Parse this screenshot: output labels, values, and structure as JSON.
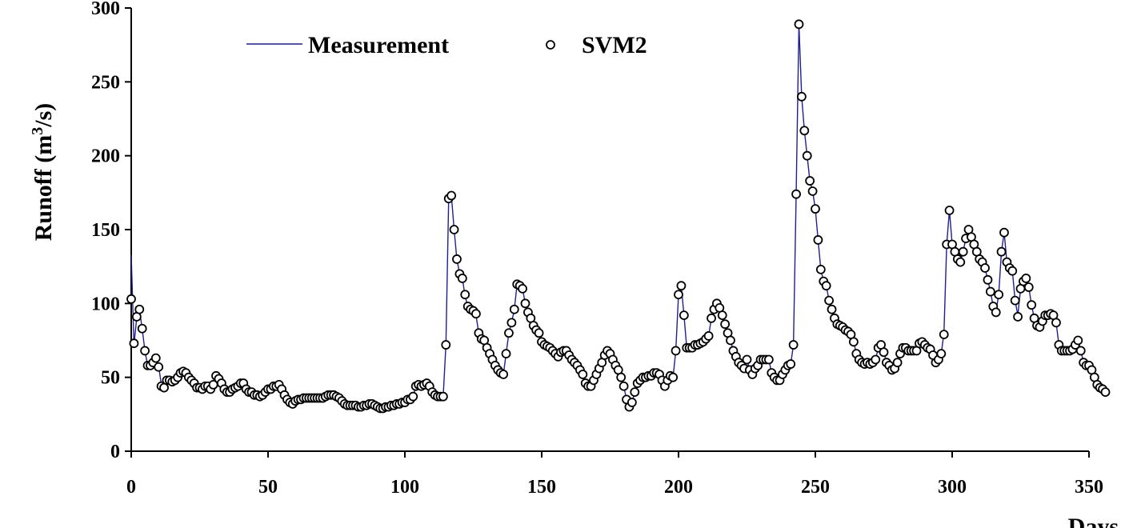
{
  "chart_data": {
    "type": "line",
    "xlabel": "Days",
    "ylabel_main": "Runoff (m",
    "ylabel_sup": "3",
    "ylabel_tail": "/s)",
    "xlim": [
      0,
      350
    ],
    "ylim": [
      0,
      300
    ],
    "xticks": [
      0,
      50,
      100,
      150,
      200,
      250,
      300,
      350
    ],
    "yticks": [
      0,
      50,
      100,
      150,
      200,
      250,
      300
    ],
    "legend": {
      "position": "top-left",
      "entries": [
        "Measurement",
        "SVM2"
      ]
    },
    "colors": {
      "measurement": "#1f1f8f",
      "svm2_edge": "#000000"
    },
    "series": [
      {
        "name": "Measurement",
        "style": "line",
        "values": [
          133,
          72,
          90,
          96,
          83,
          68,
          58,
          58,
          60,
          62,
          58,
          45,
          44,
          48,
          48,
          47,
          48,
          50,
          52,
          53,
          52,
          50,
          48,
          46,
          43,
          43,
          42,
          44,
          44,
          42,
          45,
          50,
          48,
          46,
          42,
          40,
          40,
          42,
          43,
          44,
          45,
          45,
          42,
          40,
          40,
          38,
          38,
          37,
          38,
          40,
          42,
          42,
          44,
          44,
          45,
          42,
          38,
          35,
          33,
          32,
          34,
          35,
          35,
          36,
          36,
          36,
          36,
          36,
          36,
          36,
          36,
          37,
          38,
          38,
          38,
          37,
          36,
          34,
          32,
          31,
          31,
          31,
          31,
          30,
          30,
          31,
          31,
          32,
          32,
          31,
          30,
          29,
          29,
          30,
          30,
          31,
          31,
          32,
          32,
          33,
          33,
          35,
          35,
          37,
          44,
          45,
          44,
          45,
          46,
          44,
          40,
          38,
          37,
          37,
          37,
          72,
          170,
          173,
          150,
          130,
          120,
          117,
          105,
          98,
          96,
          95,
          92,
          80,
          76,
          75,
          70,
          66,
          62,
          58,
          55,
          53,
          52,
          66,
          80,
          87,
          96,
          113,
          112,
          110,
          100,
          94,
          90,
          85,
          82,
          80,
          74,
          72,
          71,
          70,
          68,
          66,
          64,
          67,
          68,
          68,
          65,
          62,
          60,
          58,
          55,
          52,
          46,
          44,
          44,
          48,
          52,
          56,
          60,
          65,
          68,
          66,
          62,
          58,
          55,
          50,
          44,
          35,
          30,
          33,
          40,
          46,
          48,
          50,
          50,
          51,
          51,
          53,
          53,
          52,
          48,
          44,
          48,
          51,
          50,
          68,
          106,
          112,
          92,
          70,
          70,
          70,
          72,
          72,
          73,
          74,
          76,
          78,
          90,
          96,
          100,
          97,
          92,
          86,
          80,
          75,
          68,
          64,
          60,
          58,
          56,
          62,
          55,
          52,
          56,
          58,
          62,
          62,
          62,
          62,
          53,
          50,
          48,
          48,
          52,
          55,
          58,
          59,
          72,
          175,
          289,
          240,
          217,
          200,
          183,
          176,
          164,
          143,
          123,
          115,
          112,
          102,
          96,
          90,
          86,
          85,
          84,
          82,
          81,
          79,
          74,
          66,
          62,
          60,
          59,
          60,
          59,
          60,
          62,
          70,
          72,
          67,
          60,
          58,
          55,
          56,
          60,
          66,
          70,
          70,
          68,
          68,
          68,
          68,
          73,
          74,
          72,
          70,
          69,
          65,
          60,
          62,
          66,
          80,
          140,
          163,
          140,
          135,
          130,
          128,
          135,
          144,
          150,
          145,
          140,
          135,
          130,
          128,
          124,
          116,
          108,
          98,
          94,
          106,
          135,
          148,
          128,
          124,
          122,
          102,
          92,
          110,
          115,
          117,
          111,
          99,
          90,
          85,
          84,
          88,
          92,
          92,
          93,
          92,
          87,
          72,
          68,
          68,
          68,
          68,
          69,
          72,
          75,
          68,
          60,
          58,
          58,
          55,
          50,
          45,
          43,
          42,
          40
        ]
      },
      {
        "name": "SVM2",
        "style": "markers",
        "values": [
          103,
          73,
          91,
          96,
          83,
          68,
          58,
          58,
          60,
          63,
          57,
          44,
          43,
          48,
          48,
          47,
          48,
          50,
          53,
          54,
          53,
          50,
          48,
          46,
          43,
          43,
          42,
          44,
          44,
          42,
          45,
          51,
          49,
          46,
          42,
          40,
          40,
          42,
          43,
          44,
          46,
          46,
          42,
          40,
          40,
          38,
          38,
          37,
          38,
          40,
          42,
          42,
          44,
          44,
          45,
          42,
          38,
          35,
          33,
          32,
          34,
          35,
          35,
          36,
          36,
          36,
          36,
          36,
          36,
          36,
          36,
          37,
          38,
          38,
          38,
          37,
          36,
          34,
          32,
          31,
          31,
          31,
          31,
          30,
          30,
          31,
          31,
          32,
          32,
          31,
          30,
          29,
          29,
          30,
          30,
          31,
          31,
          32,
          32,
          33,
          33,
          35,
          35,
          37,
          44,
          45,
          44,
          45,
          46,
          44,
          40,
          38,
          37,
          37,
          37,
          72,
          171,
          173,
          150,
          130,
          120,
          117,
          106,
          98,
          96,
          95,
          93,
          80,
          76,
          75,
          70,
          66,
          62,
          58,
          55,
          53,
          52,
          66,
          80,
          87,
          96,
          113,
          112,
          110,
          100,
          94,
          90,
          85,
          82,
          80,
          74,
          72,
          71,
          70,
          68,
          66,
          64,
          67,
          68,
          68,
          65,
          62,
          60,
          58,
          55,
          52,
          46,
          44,
          44,
          48,
          52,
          56,
          60,
          65,
          68,
          66,
          62,
          58,
          55,
          50,
          44,
          35,
          30,
          33,
          40,
          46,
          48,
          50,
          50,
          51,
          51,
          53,
          53,
          52,
          48,
          44,
          48,
          51,
          50,
          68,
          106,
          112,
          92,
          70,
          70,
          70,
          72,
          72,
          73,
          74,
          76,
          78,
          90,
          96,
          100,
          97,
          92,
          86,
          80,
          75,
          68,
          64,
          60,
          58,
          56,
          62,
          55,
          52,
          56,
          58,
          62,
          62,
          62,
          62,
          53,
          50,
          48,
          48,
          52,
          55,
          58,
          59,
          72,
          174,
          289,
          240,
          217,
          200,
          183,
          176,
          164,
          143,
          123,
          115,
          112,
          102,
          96,
          90,
          86,
          85,
          84,
          82,
          81,
          79,
          74,
          66,
          62,
          60,
          59,
          60,
          59,
          60,
          62,
          70,
          72,
          67,
          60,
          58,
          55,
          56,
          60,
          66,
          70,
          70,
          68,
          68,
          68,
          68,
          73,
          74,
          72,
          70,
          69,
          65,
          60,
          62,
          66,
          79,
          140,
          163,
          140,
          135,
          130,
          128,
          135,
          144,
          150,
          145,
          140,
          135,
          130,
          128,
          124,
          116,
          108,
          98,
          94,
          106,
          135,
          148,
          128,
          124,
          122,
          102,
          91,
          110,
          115,
          117,
          111,
          99,
          90,
          85,
          84,
          88,
          92,
          92,
          93,
          92,
          87,
          72,
          68,
          68,
          68,
          68,
          69,
          72,
          75,
          68,
          60,
          58,
          58,
          55,
          50,
          45,
          43,
          42,
          40
        ]
      }
    ]
  }
}
